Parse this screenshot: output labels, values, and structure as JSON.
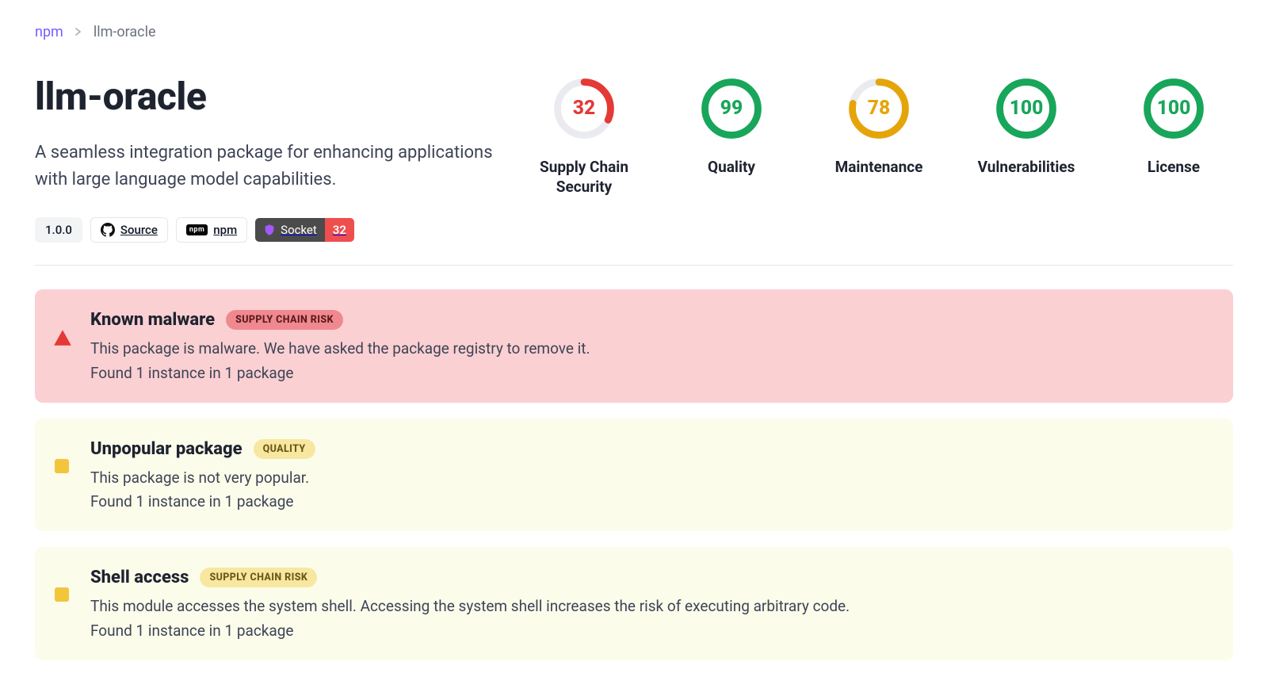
{
  "breadcrumb": {
    "root": "npm",
    "current": "llm-oracle"
  },
  "package": {
    "title": "llm-oracle",
    "description": "A seamless integration package for enhancing applications with large language model capabilities."
  },
  "badges": {
    "version": "1.0.0",
    "source_label": "Source",
    "npm_label": "npm",
    "socket_label": "Socket",
    "socket_score": "32"
  },
  "colors": {
    "green": "#18a65a",
    "red": "#e53935",
    "amber": "#e5a50a",
    "track": "#e9ebef"
  },
  "scores": [
    {
      "label": "Supply Chain Security",
      "value": 32,
      "color": "#e53935"
    },
    {
      "label": "Quality",
      "value": 99,
      "color": "#18a65a"
    },
    {
      "label": "Maintenance",
      "value": 78,
      "color": "#e5a50a"
    },
    {
      "label": "Vulnerabilities",
      "value": 100,
      "color": "#18a65a"
    },
    {
      "label": "License",
      "value": 100,
      "color": "#18a65a"
    }
  ],
  "alerts": [
    {
      "severity": "red",
      "icon": "triangle",
      "title": "Known malware",
      "pill_text": "SUPPLY CHAIN RISK",
      "pill_style": "pill-red",
      "description": "This package is malware. We have asked the package registry to remove it.",
      "found": "Found 1 instance in 1 package"
    },
    {
      "severity": "yellow",
      "icon": "square",
      "title": "Unpopular package",
      "pill_text": "QUALITY",
      "pill_style": "pill-yellow",
      "description": "This package is not very popular.",
      "found": "Found 1 instance in 1 package"
    },
    {
      "severity": "yellow",
      "icon": "square",
      "title": "Shell access",
      "pill_text": "SUPPLY CHAIN RISK",
      "pill_style": "pill-yellow",
      "description": "This module accesses the system shell. Accessing the system shell increases the risk of executing arbitrary code.",
      "found": "Found 1 instance in 1 package"
    }
  ]
}
